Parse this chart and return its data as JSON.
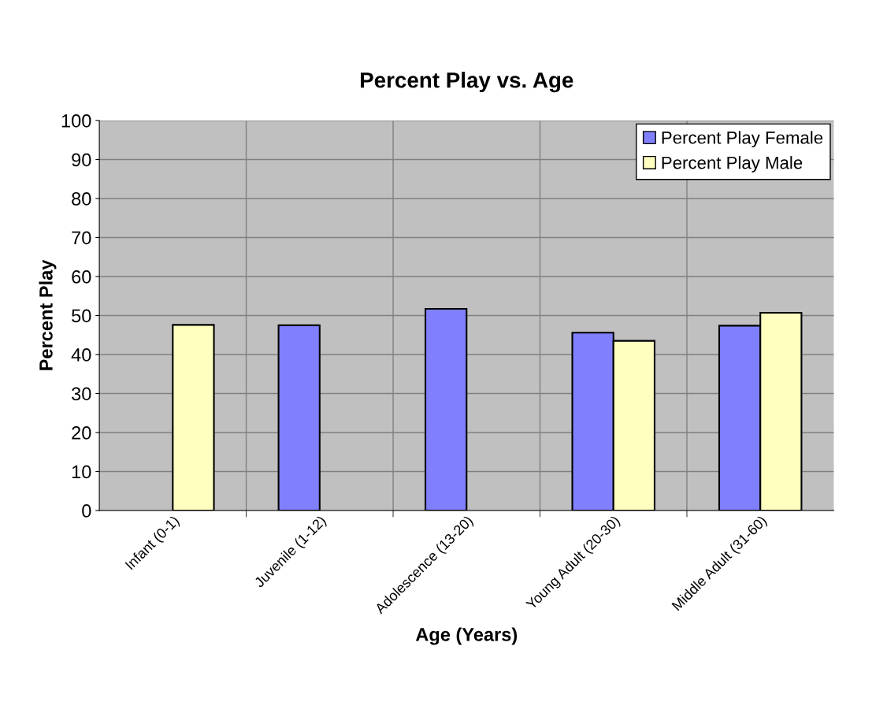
{
  "chart_data": {
    "type": "bar",
    "title": "Percent Play vs. Age",
    "xlabel": "Age (Years)",
    "ylabel": "Percent Play",
    "categories": [
      "Infant (0-1)",
      "Juvenile (1-12)",
      "Adolescence (13-20)",
      "Young Adult (20-30)",
      "Middle Adult (31-60)"
    ],
    "series": [
      {
        "name": "Percent Play Female",
        "color": "#8080ff",
        "values": [
          null,
          47.5,
          51.7,
          45.6,
          47.4
        ]
      },
      {
        "name": "Percent Play Male",
        "color": "#ffffc0",
        "values": [
          47.6,
          null,
          null,
          43.5,
          50.7
        ]
      }
    ],
    "ylim": [
      0,
      100
    ],
    "yticks": [
      0,
      10,
      20,
      30,
      40,
      50,
      60,
      70,
      80,
      90,
      100
    ],
    "grid": true,
    "legend": "top right"
  }
}
